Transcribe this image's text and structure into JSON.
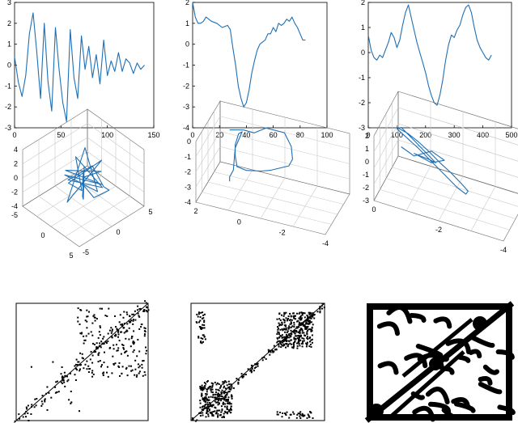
{
  "figure": {
    "colors": {
      "series": "#1f6fb4",
      "axis": "#000000",
      "grid": "#c8c8c8",
      "recurrence": "#000000"
    }
  },
  "chart_data": [
    {
      "type": "line",
      "xlim": [
        0,
        150
      ],
      "ylim": [
        -3,
        3
      ],
      "xticks": [
        "0",
        "50",
        "100",
        "150"
      ],
      "yticks": [
        "-3",
        "-2",
        "-1",
        "0",
        "1",
        "2",
        "3"
      ],
      "series": [
        {
          "x": [
            0,
            4,
            8,
            12,
            16,
            20,
            24,
            28,
            32,
            36,
            40,
            44,
            48,
            52,
            56,
            60,
            64,
            68,
            72,
            76,
            80,
            84,
            88,
            92,
            96,
            100,
            104,
            108,
            112,
            116,
            120,
            124,
            128,
            132,
            136,
            140
          ],
          "values": [
            0.4,
            -0.8,
            -1.5,
            -0.5,
            1.5,
            2.5,
            0.6,
            -1.6,
            2.0,
            -0.8,
            -2.2,
            1.8,
            -0.2,
            -1.8,
            -2.7,
            1.7,
            -0.6,
            -1.6,
            1.4,
            -0.2,
            0.9,
            -0.6,
            0.5,
            -0.9,
            1.2,
            -0.5,
            0.2,
            -0.3,
            0.6,
            -0.3,
            0.3,
            0.1,
            -0.4,
            0.1,
            -0.2,
            0.0
          ]
        }
      ]
    },
    {
      "type": "line",
      "xlim": [
        0,
        100
      ],
      "ylim": [
        -4,
        2
      ],
      "xticks": [
        "0",
        "20",
        "40",
        "60",
        "80",
        "100"
      ],
      "yticks": [
        "-4",
        "-3",
        "-2",
        "-1",
        "0",
        "1",
        "2"
      ],
      "series": [
        {
          "x": [
            0,
            2,
            4,
            6,
            8,
            10,
            14,
            18,
            22,
            26,
            28,
            30,
            32,
            34,
            36,
            38,
            40,
            42,
            44,
            46,
            48,
            50,
            52,
            54,
            56,
            58,
            60,
            62,
            64,
            66,
            68,
            70,
            72,
            74,
            76,
            78,
            80,
            82,
            84
          ],
          "values": [
            2.0,
            1.3,
            1.0,
            1.0,
            1.1,
            1.3,
            1.1,
            1.0,
            0.8,
            0.9,
            0.7,
            -0.2,
            -1.0,
            -2.0,
            -2.6,
            -3.0,
            -2.8,
            -2.2,
            -1.4,
            -0.8,
            -0.3,
            0.0,
            0.1,
            0.2,
            0.5,
            0.5,
            0.8,
            0.6,
            1.0,
            0.9,
            1.0,
            1.2,
            1.1,
            1.3,
            1.0,
            0.8,
            0.5,
            0.2,
            0.2
          ]
        }
      ]
    },
    {
      "type": "line",
      "xlim": [
        0,
        500
      ],
      "ylim": [
        -3,
        2
      ],
      "xticks": [
        "0",
        "100",
        "200",
        "300",
        "400",
        "500"
      ],
      "yticks": [
        "-3",
        "-2",
        "-1",
        "0",
        "1",
        "2"
      ],
      "series": [
        {
          "x": [
            0,
            10,
            20,
            30,
            40,
            50,
            60,
            70,
            80,
            90,
            100,
            110,
            120,
            130,
            140,
            150,
            160,
            170,
            180,
            190,
            200,
            210,
            220,
            230,
            240,
            250,
            260,
            270,
            280,
            290,
            300,
            310,
            320,
            330,
            340,
            350,
            360,
            370,
            380,
            390,
            400,
            410,
            420,
            430
          ],
          "values": [
            0.7,
            0.1,
            -0.2,
            -0.3,
            -0.1,
            -0.2,
            0.1,
            0.4,
            0.8,
            0.6,
            0.2,
            0.5,
            1.1,
            1.6,
            1.9,
            1.4,
            0.9,
            0.4,
            0.0,
            -0.4,
            -0.8,
            -1.3,
            -1.7,
            -2.0,
            -2.1,
            -1.7,
            -1.1,
            -0.3,
            0.3,
            0.7,
            0.6,
            0.9,
            1.1,
            1.5,
            1.8,
            1.9,
            1.6,
            1.0,
            0.5,
            0.2,
            0.0,
            -0.2,
            -0.3,
            -0.1
          ]
        }
      ]
    },
    {
      "type": "line3d",
      "zlim": [
        -4,
        4
      ],
      "zticks": [
        "-4",
        "-2",
        "0",
        "2",
        "4"
      ],
      "xticks": [
        "-5",
        "0",
        "5"
      ],
      "yticks": [
        "-5",
        "0",
        "5"
      ],
      "points": [
        [
          0,
          0,
          1
        ],
        [
          1,
          -1,
          0
        ],
        [
          -1,
          1,
          -1
        ],
        [
          2,
          1,
          1.5
        ],
        [
          -2,
          -1,
          0.5
        ],
        [
          1,
          2,
          -1.5
        ],
        [
          -1,
          -2,
          1
        ],
        [
          2.5,
          0,
          -0.5
        ],
        [
          -2,
          2,
          2
        ],
        [
          0,
          -2.5,
          -2
        ],
        [
          1.5,
          1.5,
          2.5
        ],
        [
          -1.5,
          -1,
          -1
        ],
        [
          2,
          -2,
          0.5
        ],
        [
          -2.5,
          1,
          1
        ],
        [
          0.5,
          2.5,
          -2.5
        ],
        [
          -1,
          -1.5,
          0
        ],
        [
          1,
          0.5,
          2
        ],
        [
          3,
          0.5,
          0.2
        ],
        [
          4.2,
          0.3,
          0.5
        ],
        [
          3,
          -1,
          -0.5
        ],
        [
          0,
          0,
          -1
        ],
        [
          -1,
          1,
          0.5
        ],
        [
          0,
          0,
          -3
        ],
        [
          1,
          -1,
          -1.5
        ],
        [
          -0.5,
          0.5,
          0
        ]
      ]
    },
    {
      "type": "line3d",
      "zlim": [
        -4,
        0
      ],
      "zticks": [
        "-4",
        "-3",
        "-2",
        "-1",
        "0"
      ],
      "xticks": [
        "2",
        "0",
        "-2",
        "-4"
      ],
      "points": [
        [
          1.2,
          0,
          0.1
        ],
        [
          0.5,
          0.2,
          0.2
        ],
        [
          0,
          0.5,
          0.0
        ],
        [
          -0.5,
          1,
          0.2
        ],
        [
          -1.5,
          1,
          0.2
        ],
        [
          -2,
          0.5,
          -0.3
        ],
        [
          -2.2,
          0,
          -0.8
        ],
        [
          -2,
          0,
          -1.3
        ],
        [
          -1.5,
          0,
          -1.6
        ],
        [
          -1,
          0,
          -1.9
        ],
        [
          -0.5,
          0,
          -2.1
        ],
        [
          0.3,
          0,
          -2.3
        ],
        [
          0.8,
          0,
          -2.2
        ],
        [
          0.9,
          0,
          -1.5
        ],
        [
          0.9,
          0,
          -0.8
        ],
        [
          0.8,
          0.3,
          -0.2
        ],
        [
          0.6,
          0.3,
          0.0
        ],
        [
          0.9,
          0,
          -1.0
        ],
        [
          1.0,
          0,
          -2.5
        ],
        [
          1.2,
          0,
          -3.0
        ],
        [
          1.2,
          0,
          -3.3
        ]
      ]
    },
    {
      "type": "line3d",
      "zlim": [
        -3,
        2
      ],
      "zticks": [
        "-3",
        "-2",
        "-1",
        "0",
        "1",
        "2"
      ],
      "xticks": [
        "0",
        "-2",
        "-4"
      ],
      "points": [
        [
          1,
          0,
          1.2
        ],
        [
          0.5,
          0,
          1.0
        ],
        [
          0,
          0,
          0.6
        ],
        [
          -0.5,
          0,
          0.1
        ],
        [
          -1,
          0,
          -0.5
        ],
        [
          -1.5,
          0,
          -1.0
        ],
        [
          -2,
          0,
          -1.6
        ],
        [
          -2.3,
          0,
          -2.0
        ],
        [
          -2.2,
          0,
          -2.3
        ],
        [
          -1.8,
          0,
          -2.0
        ],
        [
          -1.2,
          0,
          -1.3
        ],
        [
          -0.6,
          0,
          -0.6
        ],
        [
          0,
          0,
          0.1
        ],
        [
          0.6,
          0,
          0.7
        ],
        [
          1.0,
          0,
          1.1
        ],
        [
          0.8,
          0,
          1.3
        ],
        [
          0.2,
          0,
          0.6
        ],
        [
          -0.3,
          0,
          0.0
        ],
        [
          -0.8,
          0,
          -0.6
        ],
        [
          -0.5,
          0,
          -0.5
        ],
        [
          0.2,
          0,
          -0.4
        ],
        [
          -0.6,
          0,
          -0.7
        ],
        [
          -1.2,
          0,
          -0.2
        ],
        [
          -0.6,
          0,
          0.2
        ],
        [
          0.2,
          0,
          -0.6
        ],
        [
          0.8,
          0,
          -0.2
        ]
      ]
    },
    {
      "type": "heatmap",
      "description_kind": "recurrence-sparse"
    },
    {
      "type": "heatmap",
      "description_kind": "recurrence-blocks"
    },
    {
      "type": "heatmap",
      "description_kind": "recurrence-dense"
    }
  ]
}
